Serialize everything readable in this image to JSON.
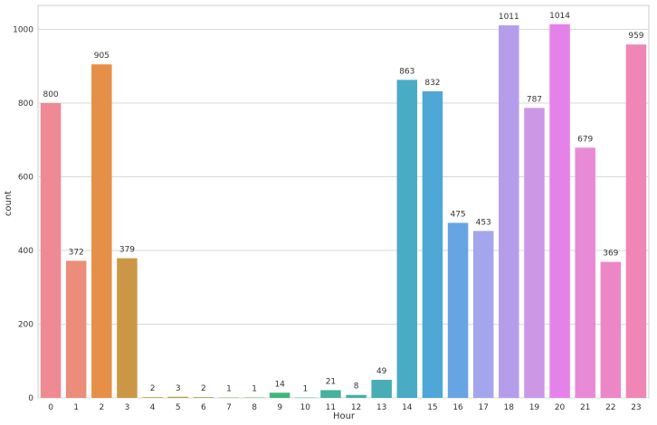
{
  "chart_data": {
    "type": "bar",
    "title": "",
    "xlabel": "Hour",
    "ylabel": "count",
    "categories": [
      "0",
      "1",
      "2",
      "3",
      "4",
      "5",
      "6",
      "7",
      "8",
      "9",
      "10",
      "11",
      "12",
      "13",
      "14",
      "15",
      "16",
      "17",
      "18",
      "19",
      "20",
      "21",
      "22",
      "23"
    ],
    "values": [
      800,
      372,
      905,
      379,
      2,
      3,
      2,
      1,
      1,
      14,
      1,
      21,
      8,
      49,
      863,
      832,
      475,
      453,
      1011,
      787,
      1014,
      679,
      369,
      959
    ],
    "data_labels": [
      "800",
      "372",
      "905",
      "379",
      "2",
      "3",
      "2",
      "1",
      "1",
      "14",
      "1",
      "21",
      "8",
      "49",
      "863",
      "832",
      "475",
      "453",
      "1011",
      "787",
      "1014",
      "679",
      "369",
      "959"
    ],
    "ylim": [
      0,
      1065
    ],
    "yticks": [
      0,
      200,
      400,
      600,
      800,
      1000
    ],
    "ytick_labels": [
      "0",
      "200",
      "400",
      "600",
      "800",
      "1000"
    ],
    "grid": "horizontal",
    "colors": [
      "#ef8a94",
      "#eb8d7a",
      "#e68f46",
      "#cb9746",
      "#ba9f45",
      "#a9a544",
      "#93aa44",
      "#76b043",
      "#4fb543",
      "#43b67a",
      "#45b38f",
      "#47b19e",
      "#47afa8",
      "#49adb6",
      "#4aabc5",
      "#4ea7d6",
      "#67a4e3",
      "#a3a6ed",
      "#b69deb",
      "#cc98e6",
      "#e582e9",
      "#e98ad6",
      "#ed86c6",
      "#ef86b6"
    ]
  }
}
